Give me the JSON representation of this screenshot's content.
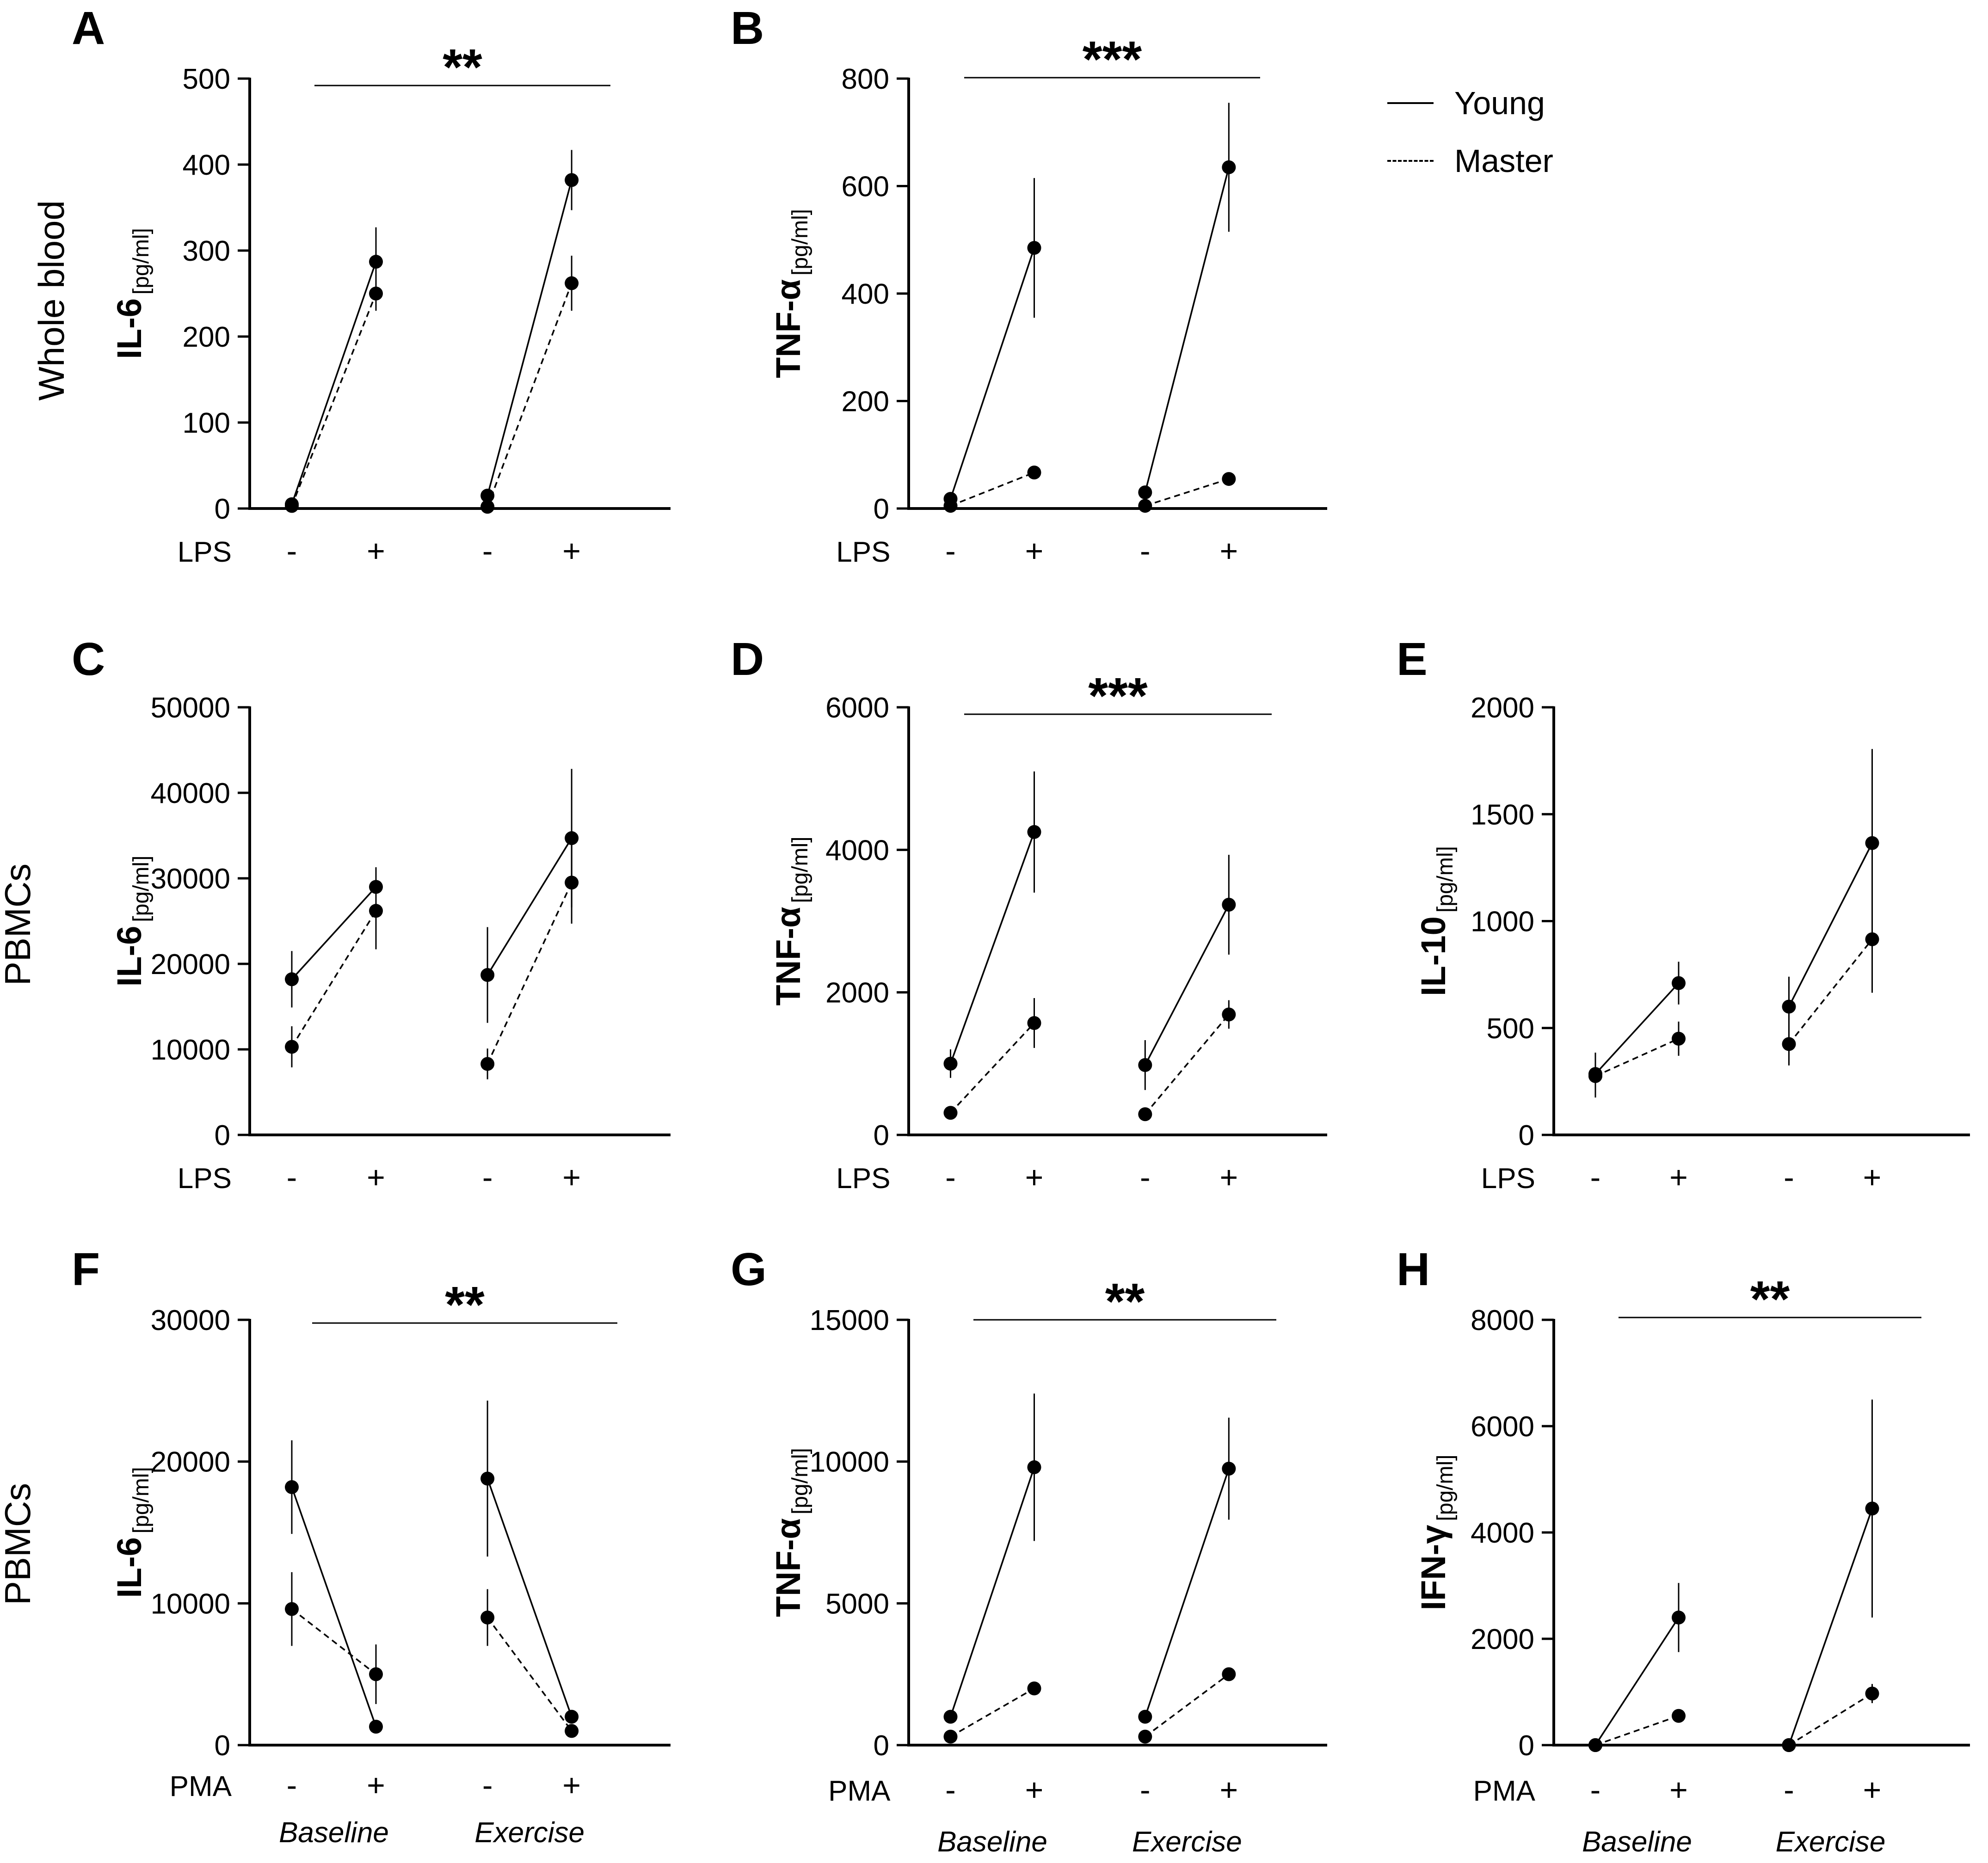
{
  "legend": {
    "young_label": "Young",
    "master_label": "Master"
  },
  "row_labels": {
    "row1": "Whole blood",
    "row2": "PBMCs",
    "row3": "PBMCs"
  },
  "colors": {
    "line": "#000000",
    "background": "#ffffff"
  },
  "chart_data": [
    {
      "panel": "A",
      "type": "line",
      "ylabel_main": "IL-6",
      "ylabel_sub": "[pg/ml]",
      "ylim": [
        0,
        500
      ],
      "yticks": [
        0,
        100,
        200,
        300,
        400,
        500
      ],
      "stimulus": "LPS",
      "categories": [
        "-",
        "+",
        "-",
        "+"
      ],
      "groups": [],
      "significance": "**",
      "series": [
        {
          "name": "Young",
          "values": [
            5,
            287,
            15,
            382
          ],
          "errors": [
            0,
            40,
            0,
            35
          ]
        },
        {
          "name": "Master",
          "values": [
            3,
            250,
            2,
            262
          ],
          "errors": [
            0,
            20,
            0,
            32
          ]
        }
      ]
    },
    {
      "panel": "B",
      "type": "line",
      "ylabel_main": "TNF-α",
      "ylabel_sub": "[pg/ml]",
      "ylim": [
        0,
        800
      ],
      "yticks": [
        0,
        200,
        400,
        600,
        800
      ],
      "stimulus": "LPS",
      "categories": [
        "-",
        "+",
        "-",
        "+"
      ],
      "groups": [],
      "significance": "***",
      "series": [
        {
          "name": "Young",
          "values": [
            18,
            485,
            30,
            635
          ],
          "errors": [
            0,
            130,
            0,
            120
          ]
        },
        {
          "name": "Master",
          "values": [
            5,
            67,
            5,
            55
          ],
          "errors": [
            0,
            0,
            0,
            0
          ]
        }
      ]
    },
    {
      "panel": "C",
      "type": "line",
      "ylabel_main": "IL-6",
      "ylabel_sub": "[pg/ml]",
      "ylim": [
        0,
        50000
      ],
      "yticks": [
        0,
        10000,
        20000,
        30000,
        40000,
        50000
      ],
      "stimulus": "LPS",
      "categories": [
        "-",
        "+",
        "-",
        "+"
      ],
      "groups": [],
      "significance": "",
      "series": [
        {
          "name": "Young",
          "values": [
            18200,
            29000,
            18700,
            34700
          ],
          "errors": [
            3300,
            2300,
            5600,
            8100
          ]
        },
        {
          "name": "Master",
          "values": [
            10300,
            26200,
            8300,
            29500
          ],
          "errors": [
            2400,
            4500,
            1800,
            4800
          ]
        }
      ]
    },
    {
      "panel": "D",
      "type": "line",
      "ylabel_main": "TNF-α",
      "ylabel_sub": "[pg/ml]",
      "ylim": [
        0,
        6000
      ],
      "yticks": [
        0,
        2000,
        4000,
        6000
      ],
      "stimulus": "LPS",
      "categories": [
        "-",
        "+",
        "-",
        "+"
      ],
      "groups": [],
      "significance": "***",
      "series": [
        {
          "name": "Young",
          "values": [
            1000,
            4250,
            980,
            3230
          ],
          "errors": [
            200,
            850,
            350,
            700
          ]
        },
        {
          "name": "Master",
          "values": [
            310,
            1570,
            290,
            1690
          ],
          "errors": [
            0,
            350,
            0,
            200
          ]
        }
      ]
    },
    {
      "panel": "E",
      "type": "line",
      "ylabel_main": "IL-10",
      "ylabel_sub": "[pg/ml]",
      "ylim": [
        0,
        2000
      ],
      "yticks": [
        0,
        500,
        1000,
        1500,
        2000
      ],
      "stimulus": "LPS",
      "categories": [
        "-",
        "+",
        "-",
        "+"
      ],
      "groups": [],
      "significance": "",
      "series": [
        {
          "name": "Young",
          "values": [
            285,
            710,
            600,
            1365
          ],
          "errors": [
            100,
            100,
            140,
            440
          ]
        },
        {
          "name": "Master",
          "values": [
            275,
            450,
            425,
            915
          ],
          "errors": [
            100,
            80,
            100,
            250
          ]
        }
      ]
    },
    {
      "panel": "F",
      "type": "line",
      "ylabel_main": "IL-6",
      "ylabel_sub": "[pg/ml]",
      "ylim": [
        0,
        30000
      ],
      "yticks": [
        0,
        10000,
        20000,
        30000
      ],
      "stimulus": "PMA",
      "categories": [
        "-",
        "+",
        "-",
        "+"
      ],
      "groups": [
        "Baseline",
        "Exercise"
      ],
      "significance": "**",
      "series": [
        {
          "name": "Young",
          "values": [
            18200,
            1300,
            18800,
            2000
          ],
          "errors": [
            3300,
            0,
            5500,
            0
          ]
        },
        {
          "name": "Master",
          "values": [
            9600,
            5000,
            9000,
            1000
          ],
          "errors": [
            2600,
            2100,
            2000,
            0
          ]
        }
      ]
    },
    {
      "panel": "G",
      "type": "line",
      "ylabel_main": "TNF-α",
      "ylabel_sub": "[pg/ml]",
      "ylim": [
        0,
        15000
      ],
      "yticks": [
        0,
        5000,
        10000,
        15000
      ],
      "stimulus": "PMA",
      "categories": [
        "-",
        "+",
        "-",
        "+"
      ],
      "groups": [
        "Baseline",
        "Exercise"
      ],
      "significance": "**",
      "series": [
        {
          "name": "Young",
          "values": [
            1000,
            9800,
            1000,
            9750
          ],
          "errors": [
            0,
            2600,
            0,
            1800
          ]
        },
        {
          "name": "Master",
          "values": [
            300,
            2000,
            300,
            2500
          ],
          "errors": [
            0,
            0,
            0,
            0
          ]
        }
      ]
    },
    {
      "panel": "H",
      "type": "line",
      "ylabel_main": "IFN-γ",
      "ylabel_sub": "[pg/ml]",
      "ylim": [
        0,
        8000
      ],
      "yticks": [
        0,
        2000,
        4000,
        6000,
        8000
      ],
      "stimulus": "PMA",
      "categories": [
        "-",
        "+",
        "-",
        "+"
      ],
      "groups": [
        "Baseline",
        "Exercise"
      ],
      "significance": "**",
      "series": [
        {
          "name": "Young",
          "values": [
            0,
            2400,
            0,
            4450
          ],
          "errors": [
            0,
            650,
            0,
            2050
          ]
        },
        {
          "name": "Master",
          "values": [
            0,
            550,
            0,
            970
          ],
          "errors": [
            0,
            0,
            0,
            180
          ]
        }
      ]
    }
  ]
}
